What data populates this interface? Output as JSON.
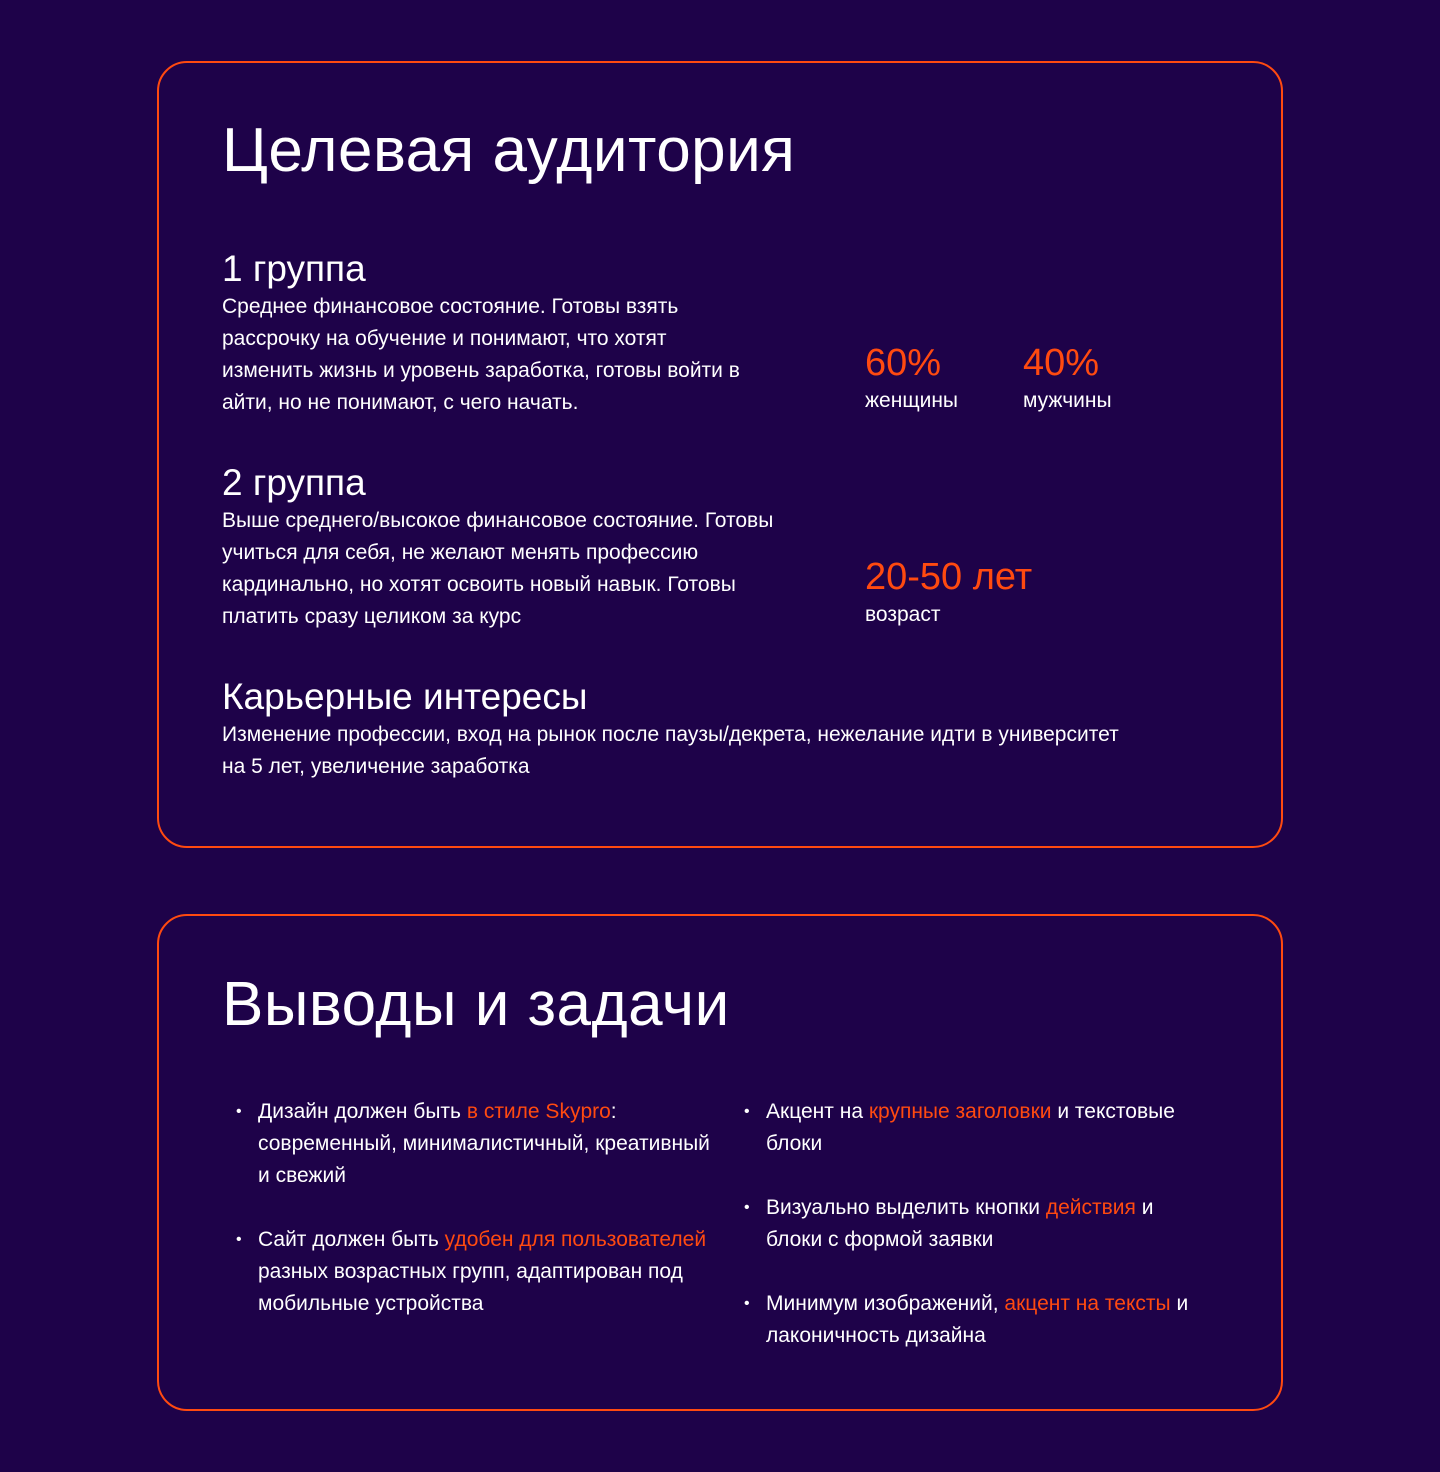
{
  "colors": {
    "background": "#1e0249",
    "accent": "#ff4a10",
    "text": "#ffffff"
  },
  "audience": {
    "title": "Целевая аудитория",
    "group1": {
      "title": "1 группа",
      "text": "Среднее финансовое состояние. Готовы взять рассрочку на обучение и понимают, что хотят изменить жизнь и уровень заработка, готовы войти в айти, но не понимают, с чего начать."
    },
    "group2": {
      "title": "2 группа",
      "text": "Выше среднего/высокое финансовое состояние. Готовы учиться для себя, не желают менять профессию кардинально, но хотят освоить новый навык. Готовы платить сразу целиком за курс"
    },
    "career": {
      "title": "Карьерные интересы",
      "text": "Изменение профессии, вход на рынок после паузы/декрета, нежелание идти в университет на 5 лет, увеличение заработка"
    },
    "stats": [
      {
        "value": "60%",
        "label": "женщины"
      },
      {
        "value": "40%",
        "label": "мужчины"
      },
      {
        "value": "20-50 лет",
        "label": "возраст"
      }
    ]
  },
  "conclusions": {
    "title": "Выводы и задачи",
    "items": [
      [
        {
          "t": "Дизайн должен быть "
        },
        {
          "t": "в стиле Skypro"
        },
        {
          "t": ": современный, минималистичный, креативный и свежий"
        }
      ],
      [
        {
          "t": "Сайт должен быть "
        },
        {
          "t": "удобен для пользователей"
        },
        {
          "t": " разных возрастных групп, адаптирован под мобильные устройства"
        }
      ],
      [
        {
          "t": "Акцент на "
        },
        {
          "t": "крупные заголовки"
        },
        {
          "t": " и текстовые блоки"
        }
      ],
      [
        {
          "t": "Визуально выделить кнопки "
        },
        {
          "t": "действия"
        },
        {
          "t": " и блоки с формой заявки"
        }
      ],
      [
        {
          "t": "Минимум изображений, "
        },
        {
          "t": "акцент на тексты"
        },
        {
          "t": " и лаконичность дизайна"
        }
      ]
    ]
  }
}
